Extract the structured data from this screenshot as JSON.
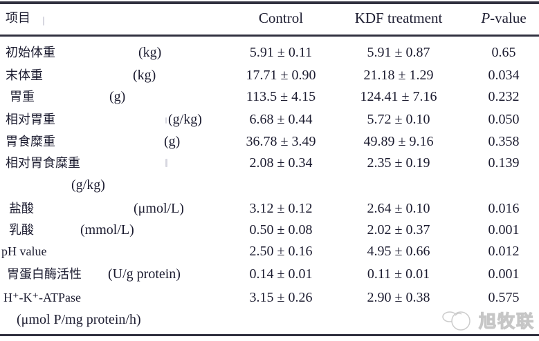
{
  "table": {
    "headers": {
      "item": "项目",
      "control": "Control",
      "treatment": "KDF treatment",
      "pvalue_italic": "P",
      "pvalue_rest": "-value"
    },
    "rows": [
      {
        "label": "初始体重",
        "unit": "(kg)",
        "unit_position": "inline",
        "control": "5.91 ± 0.11",
        "treatment": "5.91 ± 0.87",
        "p": "0.65"
      },
      {
        "label": "末体重",
        "unit": "(kg)",
        "unit_position": "inline",
        "control": "17.71 ± 0.90",
        "treatment": "21.18 ± 1.29",
        "p": "0.034"
      },
      {
        "label": "胃重",
        "unit": "(g)",
        "unit_position": "inline",
        "control": "113.5 ± 4.15",
        "treatment": "124.41 ± 7.16",
        "p": "0.232"
      },
      {
        "label": "相对胃重",
        "unit": "(g/kg)",
        "unit_position": "inline",
        "control": "6.68 ± 0.44",
        "treatment": "5.72 ± 0.10",
        "p": "0.050"
      },
      {
        "label": "胃食糜重",
        "unit": "(g)",
        "unit_position": "inline",
        "control": "36.78 ± 3.49",
        "treatment": "49.89 ± 9.16",
        "p": "0.358"
      },
      {
        "label": "相对胃食糜重",
        "unit": "(g/kg)",
        "unit_position": "below",
        "control": "2.08 ± 0.34",
        "treatment": "2.35 ± 0.19",
        "p": "0.139"
      },
      {
        "label": "盐酸",
        "unit": "(μmol/L)",
        "unit_position": "inline",
        "control": "3.12 ± 0.12",
        "treatment": "2.64 ± 0.10",
        "p": "0.016"
      },
      {
        "label": "乳酸",
        "unit": "(mmol/L)",
        "unit_position": "inline",
        "control": "0.50 ± 0.08",
        "treatment": "2.02 ± 0.37",
        "p": "0.001"
      },
      {
        "label": "pH value",
        "unit": "",
        "unit_position": "none",
        "control": "2.50 ± 0.16",
        "treatment": "4.95 ± 0.66",
        "p": "0.012"
      },
      {
        "label": "胃蛋白酶活性",
        "unit": "(U/g protein)",
        "unit_position": "inline",
        "control": "0.14 ± 0.01",
        "treatment": "0.11 ± 0.01",
        "p": "0.001"
      },
      {
        "label": "H⁺-K⁺-ATPase",
        "unit": "(μmol P/mg protein/h)",
        "unit_position": "below",
        "control": "3.15 ± 0.26",
        "treatment": "2.90 ± 0.38",
        "p": "0.575"
      }
    ]
  },
  "watermark": {
    "text": "旭牧联"
  },
  "colors": {
    "text": "#1c1c30",
    "rule": "#30303f",
    "background": "#ffffff",
    "watermark_outline": "#c6c6c6"
  }
}
